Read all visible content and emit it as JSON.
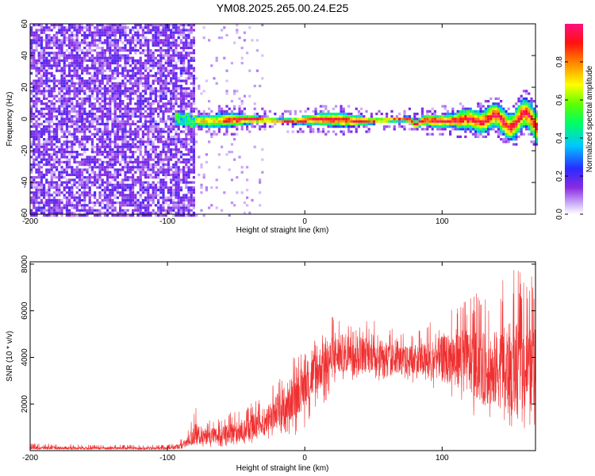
{
  "title": "YM08.2025.265.00.24.E25",
  "chart_data": [
    {
      "type": "heatmap",
      "title": "YM08.2025.265.00.24.E25",
      "xlabel": "Height of straight line (km)",
      "ylabel": "Frequency (Hz)",
      "xlim": [
        -200,
        168
      ],
      "ylim": [
        -60,
        60
      ],
      "xticks": [
        -200,
        -100,
        0,
        100
      ],
      "yticks": [
        -60,
        -40,
        -20,
        0,
        20,
        40,
        60
      ],
      "colorbar": {
        "label": "Normalized spectral amplitude",
        "range": [
          0,
          1
        ],
        "ticks": [
          "0.0",
          "0.2",
          "0.4",
          "0.6",
          "0.8"
        ],
        "colormap": "rainbow (white-purple-blue-cyan-green-yellow-orange-red-magenta)"
      },
      "description_regions": [
        {
          "x_range": [
            -200,
            -80
          ],
          "pattern": "diffuse noise across all frequencies",
          "amplitude": [
            0.05,
            0.3
          ]
        },
        {
          "x_range": [
            -80,
            168
          ],
          "pattern": "narrow band centered near 0 Hz",
          "band_halfwidth_hz": [
            2,
            8
          ],
          "peak_amplitude": 1.0
        }
      ]
    },
    {
      "type": "line",
      "xlabel": "Height of straight line (km)",
      "ylabel": "SNR (10 * v/v)",
      "xlim": [
        -200,
        168
      ],
      "ylim": [
        0,
        8100
      ],
      "xticks": [
        -200,
        -100,
        0,
        100
      ],
      "yticks": [
        2000,
        4000,
        6000,
        8000
      ],
      "color": "#f03030",
      "envelope": {
        "x": [
          -200,
          -150,
          -100,
          -90,
          -85,
          -80,
          -70,
          -60,
          -50,
          -40,
          -30,
          -20,
          -10,
          0,
          10,
          20,
          30,
          40,
          50,
          60,
          70,
          80,
          90,
          100,
          110,
          120,
          130,
          140,
          150,
          160,
          168
        ],
        "min": [
          50,
          40,
          30,
          60,
          100,
          200,
          150,
          150,
          200,
          300,
          400,
          500,
          600,
          800,
          1500,
          2500,
          3000,
          3000,
          3000,
          3000,
          2800,
          2700,
          2600,
          2500,
          2000,
          1500,
          1300,
          1000,
          1000,
          800,
          800
        ],
        "max": [
          300,
          250,
          250,
          500,
          900,
          1900,
          1300,
          1400,
          1800,
          2000,
          2400,
          3300,
          4000,
          4200,
          5000,
          5800,
          6000,
          5800,
          5600,
          5400,
          5000,
          5200,
          5500,
          5800,
          6500,
          6500,
          7000,
          7000,
          8000,
          7500,
          7500
        ],
        "typical": [
          120,
          110,
          100,
          200,
          400,
          700,
          600,
          700,
          800,
          1000,
          1300,
          1700,
          2200,
          2800,
          3500,
          4000,
          4200,
          4200,
          4100,
          4000,
          3900,
          3800,
          3900,
          4000,
          4000,
          3800,
          3500,
          3500,
          3600,
          3500,
          3400
        ]
      }
    }
  ]
}
